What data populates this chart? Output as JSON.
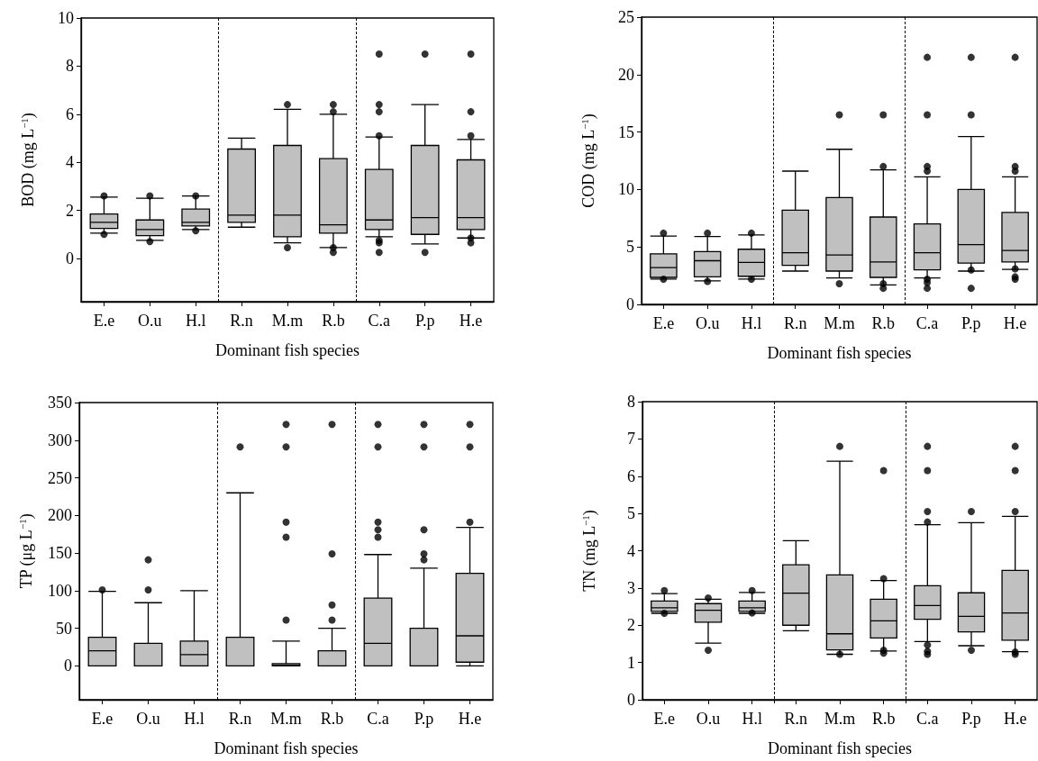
{
  "chart_data": [
    {
      "type": "box",
      "ylabel": "BOD (mg L$^{−1}$)",
      "xlabel": "Dominant fish species",
      "categories": [
        "E.e",
        "O.u",
        "H.l",
        "R.n",
        "M.m",
        "R.b",
        "C.a",
        "P.p",
        "H.e"
      ],
      "ylim": [
        -1.8,
        10
      ],
      "yticks": [
        0,
        2,
        4,
        6,
        8,
        10
      ],
      "series": [
        {
          "color": "#c0c0c0",
          "boxes": [
            {
              "low": 1.05,
              "q1": 1.25,
              "median": 1.5,
              "q3": 1.85,
              "high": 2.55,
              "outliers": [
                2.6,
                1.0
              ]
            },
            {
              "low": 0.75,
              "q1": 0.95,
              "median": 1.2,
              "q3": 1.6,
              "high": 2.5,
              "outliers": [
                2.6,
                0.7
              ]
            },
            {
              "low": 1.2,
              "q1": 1.35,
              "median": 1.5,
              "q3": 2.05,
              "high": 2.6,
              "outliers": [
                2.6,
                1.15
              ]
            },
            {
              "low": 1.3,
              "q1": 1.5,
              "median": 1.8,
              "q3": 4.55,
              "high": 5.0
            },
            {
              "low": 0.65,
              "q1": 0.9,
              "median": 1.8,
              "q3": 4.7,
              "high": 6.2,
              "outliers": [
                6.4,
                0.45
              ]
            },
            {
              "low": 0.45,
              "q1": 1.05,
              "median": 1.4,
              "q3": 4.15,
              "high": 6.0,
              "outliers": [
                6.4,
                6.1,
                0.45,
                0.25
              ]
            },
            {
              "low": 0.9,
              "q1": 1.2,
              "median": 1.6,
              "q3": 3.7,
              "high": 5.05,
              "outliers": [
                8.5,
                6.4,
                6.1,
                5.1,
                0.75,
                0.65,
                0.25
              ]
            },
            {
              "low": 0.6,
              "q1": 1.0,
              "median": 1.7,
              "q3": 4.7,
              "high": 6.4,
              "outliers": [
                8.5,
                0.25
              ]
            },
            {
              "low": 0.85,
              "q1": 1.2,
              "median": 1.7,
              "q3": 4.1,
              "high": 4.95,
              "outliers": [
                8.5,
                6.1,
                5.1,
                0.85,
                0.65
              ]
            }
          ]
        }
      ]
    },
    {
      "type": "box",
      "ylabel": "COD (mg L$^{−1}$)",
      "xlabel": "Dominant fish species",
      "categories": [
        "E.e",
        "O.u",
        "H.l",
        "R.n",
        "M.m",
        "R.b",
        "C.a",
        "P.p",
        "H.e"
      ],
      "ylim": [
        0,
        25
      ],
      "yticks": [
        0,
        5,
        10,
        15,
        20,
        25
      ],
      "series": [
        {
          "color": "#c0c0c0",
          "boxes": [
            {
              "low": 2.2,
              "q1": 2.35,
              "median": 3.2,
              "q3": 4.4,
              "high": 5.95,
              "outliers": [
                6.2,
                2.2
              ]
            },
            {
              "low": 2.05,
              "q1": 2.4,
              "median": 3.8,
              "q3": 4.6,
              "high": 5.9,
              "outliers": [
                6.2,
                2.0
              ]
            },
            {
              "low": 2.2,
              "q1": 2.45,
              "median": 3.65,
              "q3": 4.8,
              "high": 6.05,
              "outliers": [
                6.2,
                2.2
              ]
            },
            {
              "low": 2.9,
              "q1": 3.4,
              "median": 4.5,
              "q3": 8.2,
              "high": 11.6
            },
            {
              "low": 2.3,
              "q1": 2.9,
              "median": 4.3,
              "q3": 9.3,
              "high": 13.5,
              "outliers": [
                16.5,
                1.8
              ]
            },
            {
              "low": 1.7,
              "q1": 2.35,
              "median": 3.7,
              "q3": 7.6,
              "high": 11.7,
              "outliers": [
                16.5,
                12.0,
                1.8,
                1.4
              ]
            },
            {
              "low": 2.3,
              "q1": 3.0,
              "median": 4.5,
              "q3": 7.0,
              "high": 11.1,
              "outliers": [
                21.5,
                16.5,
                12.0,
                11.6,
                2.2,
                1.9,
                1.4
              ]
            },
            {
              "low": 2.9,
              "q1": 3.6,
              "median": 5.2,
              "q3": 10.0,
              "high": 14.6,
              "outliers": [
                21.5,
                16.5,
                3.0,
                1.4
              ]
            },
            {
              "low": 3.05,
              "q1": 3.7,
              "median": 4.7,
              "q3": 8.0,
              "high": 11.1,
              "outliers": [
                21.5,
                12.0,
                11.6,
                3.1,
                2.4,
                2.2
              ]
            }
          ]
        }
      ]
    },
    {
      "type": "box",
      "ylabel": "TP (μg L$^{−1}$)",
      "xlabel": "Dominant fish species",
      "categories": [
        "E.e",
        "O.u",
        "H.l",
        "R.n",
        "M.m",
        "R.b",
        "C.a",
        "P.p",
        "H.e"
      ],
      "ylim": [
        -45,
        350
      ],
      "yticks": [
        0,
        50,
        100,
        150,
        200,
        250,
        300,
        350
      ],
      "series": [
        {
          "color": "#c0c0c0",
          "boxes": [
            {
              "low": 0,
              "q1": 0,
              "median": 20,
              "q3": 38,
              "high": 99,
              "outliers": [
                101
              ]
            },
            {
              "low": 0,
              "q1": 0,
              "median": 0,
              "q3": 30,
              "high": 84,
              "outliers": [
                141,
                101
              ]
            },
            {
              "low": 0,
              "q1": 0,
              "median": 15,
              "q3": 33,
              "high": 100
            },
            {
              "low": 0,
              "q1": 0,
              "median": 0,
              "q3": 38,
              "high": 230,
              "outliers": [
                291
              ]
            },
            {
              "low": 0,
              "q1": 0,
              "median": 1,
              "q3": 3,
              "high": 33,
              "outliers": [
                321,
                291,
                191,
                171,
                61
              ]
            },
            {
              "low": 0,
              "q1": 0,
              "median": 0,
              "q3": 20,
              "high": 50,
              "outliers": [
                321,
                149,
                81,
                61
              ]
            },
            {
              "low": 0,
              "q1": 0,
              "median": 30,
              "q3": 90,
              "high": 148,
              "outliers": [
                321,
                291,
                191,
                181,
                171
              ]
            },
            {
              "low": 0,
              "q1": 0,
              "median": 0,
              "q3": 50,
              "high": 130,
              "outliers": [
                321,
                291,
                181,
                149,
                141
              ]
            },
            {
              "low": 0,
              "q1": 5,
              "median": 40,
              "q3": 123,
              "high": 184,
              "outliers": [
                321,
                291,
                191
              ]
            }
          ]
        }
      ]
    },
    {
      "type": "box",
      "ylabel": "TN (mg L$^{−1}$)",
      "xlabel": "Dominant fish species",
      "categories": [
        "E.e",
        "O.u",
        "H.l",
        "R.n",
        "M.m",
        "R.b",
        "C.a",
        "P.p",
        "H.e"
      ],
      "ylim": [
        0,
        8
      ],
      "yticks": [
        0,
        1,
        2,
        3,
        4,
        5,
        6,
        7,
        8
      ],
      "series": [
        {
          "color": "#c0c0c0",
          "boxes": [
            {
              "low": 2.32,
              "q1": 2.37,
              "median": 2.47,
              "q3": 2.65,
              "high": 2.85,
              "outliers": [
                2.93,
                2.32
              ]
            },
            {
              "low": 1.52,
              "q1": 2.08,
              "median": 2.4,
              "q3": 2.58,
              "high": 2.7,
              "outliers": [
                2.73,
                1.33
              ]
            },
            {
              "low": 2.32,
              "q1": 2.37,
              "median": 2.47,
              "q3": 2.65,
              "high": 2.88,
              "outliers": [
                2.93,
                2.33
              ]
            },
            {
              "low": 1.85,
              "q1": 2.0,
              "median": 2.86,
              "q3": 3.62,
              "high": 4.27
            },
            {
              "low": 1.22,
              "q1": 1.34,
              "median": 1.77,
              "q3": 3.35,
              "high": 6.4,
              "outliers": [
                6.8,
                1.22
              ]
            },
            {
              "low": 1.31,
              "q1": 1.66,
              "median": 2.12,
              "q3": 2.7,
              "high": 3.2,
              "outliers": [
                6.15,
                3.25,
                1.33,
                1.25
              ]
            },
            {
              "low": 1.56,
              "q1": 2.16,
              "median": 2.53,
              "q3": 3.06,
              "high": 4.7,
              "outliers": [
                6.8,
                6.15,
                5.05,
                4.77,
                1.47,
                1.3,
                1.22
              ]
            },
            {
              "low": 1.45,
              "q1": 1.82,
              "median": 2.24,
              "q3": 2.87,
              "high": 4.75,
              "outliers": [
                5.05,
                1.33
              ]
            },
            {
              "low": 1.29,
              "q1": 1.6,
              "median": 2.33,
              "q3": 3.47,
              "high": 4.92,
              "outliers": [
                6.8,
                6.15,
                5.05,
                1.28,
                1.22
              ]
            }
          ]
        }
      ]
    }
  ]
}
